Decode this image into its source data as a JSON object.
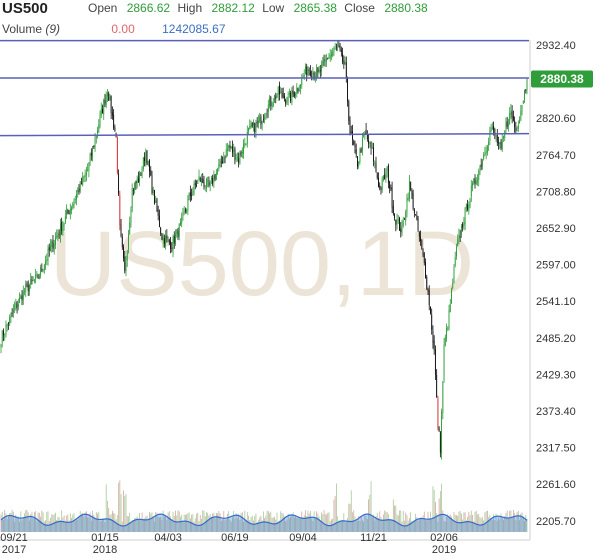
{
  "header": {
    "symbol": "US500",
    "open_label": "Open",
    "open_value": "2866.62",
    "high_label": "High",
    "high_value": "2882.12",
    "low_label": "Low",
    "low_value": "2865.38",
    "close_label": "Close",
    "close_value": "2880.38",
    "volume_label": "Volume",
    "volume_period": "(9)",
    "volume_val1": "0.00",
    "volume_val2": "1242085.67"
  },
  "colors": {
    "up": "#2e9d3a",
    "down": "#111111",
    "bear_big": "#d43030",
    "trendline": "#5a5fb8",
    "price_tag": "#2e9d3a",
    "volume_fill": "#3a7dd8",
    "volume_line": "#2f6ccf",
    "watermark": "#ece4d6"
  },
  "chart_data": {
    "type": "candlestick",
    "watermark": "US500,1D",
    "y_ticks": [
      "2932.40",
      "2876.50",
      "2820.60",
      "2764.70",
      "2708.80",
      "2652.90",
      "2597.00",
      "2541.10",
      "2485.20",
      "2429.30",
      "2373.40",
      "2317.50",
      "2261.60",
      "2205.70"
    ],
    "y_range": [
      2205.7,
      2960
    ],
    "x_ticks": [
      {
        "label": "09/21",
        "sub": "2017"
      },
      {
        "label": "01/15",
        "sub": "2018"
      },
      {
        "label": "04/03",
        "sub": ""
      },
      {
        "label": "06/19",
        "sub": ""
      },
      {
        "label": "09/04",
        "sub": ""
      },
      {
        "label": "11/21",
        "sub": ""
      },
      {
        "label": "02/06",
        "sub": "2019"
      }
    ],
    "price_tag": "2880.38",
    "trendlines": [
      {
        "y1": 2939.0,
        "y2": 2939.0
      },
      {
        "y1": 2882.0,
        "y2": 2882.0
      },
      {
        "y1": 2794.0,
        "y2": 2797.0
      }
    ],
    "anchors": [
      [
        0,
        2485
      ],
      [
        10,
        2525
      ],
      [
        20,
        2560
      ],
      [
        30,
        2578
      ],
      [
        40,
        2622
      ],
      [
        50,
        2660
      ],
      [
        60,
        2700
      ],
      [
        70,
        2742
      ],
      [
        80,
        2820
      ],
      [
        86,
        2866
      ],
      [
        93,
        2790
      ],
      [
        96,
        2650
      ],
      [
        100,
        2583
      ],
      [
        106,
        2712
      ],
      [
        112,
        2730
      ],
      [
        117,
        2770
      ],
      [
        122,
        2715
      ],
      [
        130,
        2640
      ],
      [
        138,
        2628
      ],
      [
        146,
        2660
      ],
      [
        152,
        2700
      ],
      [
        160,
        2728
      ],
      [
        168,
        2715
      ],
      [
        176,
        2745
      ],
      [
        184,
        2778
      ],
      [
        192,
        2758
      ],
      [
        200,
        2800
      ],
      [
        208,
        2813
      ],
      [
        216,
        2840
      ],
      [
        224,
        2860
      ],
      [
        232,
        2848
      ],
      [
        240,
        2868
      ],
      [
        248,
        2898
      ],
      [
        256,
        2886
      ],
      [
        264,
        2914
      ],
      [
        272,
        2928
      ],
      [
        278,
        2898
      ],
      [
        282,
        2800
      ],
      [
        288,
        2752
      ],
      [
        294,
        2798
      ],
      [
        300,
        2768
      ],
      [
        306,
        2712
      ],
      [
        312,
        2740
      ],
      [
        318,
        2670
      ],
      [
        324,
        2648
      ],
      [
        330,
        2720
      ],
      [
        336,
        2658
      ],
      [
        342,
        2598
      ],
      [
        346,
        2540
      ],
      [
        350,
        2464
      ],
      [
        353,
        2352
      ],
      [
        355,
        2318
      ],
      [
        358,
        2470
      ],
      [
        362,
        2520
      ],
      [
        368,
        2620
      ],
      [
        374,
        2668
      ],
      [
        380,
        2710
      ],
      [
        386,
        2740
      ],
      [
        392,
        2778
      ],
      [
        396,
        2806
      ],
      [
        400,
        2790
      ],
      [
        404,
        2770
      ],
      [
        408,
        2808
      ],
      [
        412,
        2830
      ],
      [
        416,
        2802
      ],
      [
        420,
        2834
      ],
      [
        425,
        2880
      ]
    ],
    "candle_count": 426
  }
}
